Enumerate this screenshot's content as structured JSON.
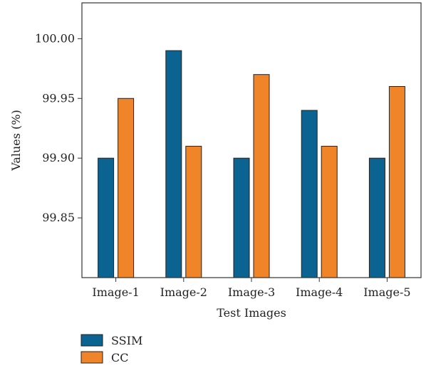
{
  "chart_data": {
    "type": "bar",
    "categories": [
      "Image-1",
      "Image-2",
      "Image-3",
      "Image-4",
      "Image-5"
    ],
    "series": [
      {
        "name": "SSIM",
        "values": [
          99.9,
          99.99,
          99.9,
          99.94,
          99.9
        ],
        "color": "#0a6390"
      },
      {
        "name": "CC",
        "values": [
          99.95,
          99.91,
          99.97,
          99.91,
          99.96
        ],
        "color": "#f08428"
      }
    ],
    "title": "",
    "xlabel": "Test Images",
    "ylabel": "Values (%)",
    "ylim": [
      99.8,
      100.03
    ],
    "yticks": [
      99.85,
      99.9,
      99.95,
      100.0
    ],
    "ytick_labels": [
      "99.85",
      "99.90",
      "99.95",
      "100.00"
    ],
    "grid": false,
    "legend": "bottom-left"
  }
}
